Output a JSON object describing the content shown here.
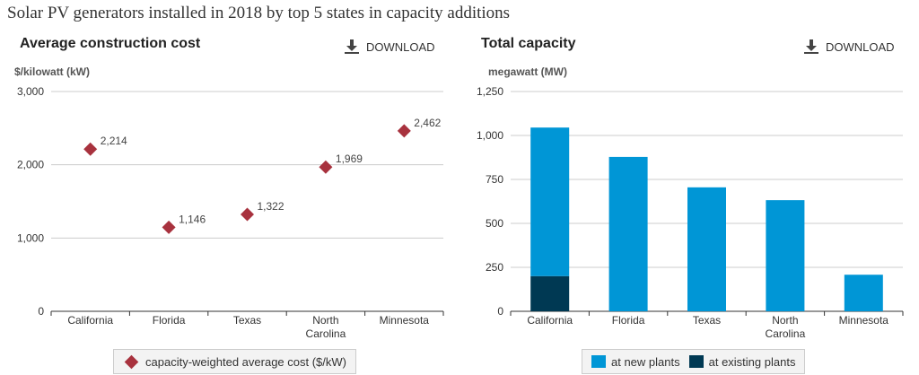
{
  "page_title": "Solar PV generators installed in 2018 by top 5 states in capacity additions",
  "colors": {
    "marker": "#a8323e",
    "new_plants": "#0096d6",
    "existing_plants": "#003953",
    "grid": "#cccccc",
    "axis": "#333333"
  },
  "icons": {
    "download": "download-icon"
  },
  "left_panel": {
    "title": "Average construction cost",
    "download_label": "DOWNLOAD",
    "unit": "$/kilowatt (kW)",
    "legend": "capacity-weighted average cost ($/kW)"
  },
  "right_panel": {
    "title": "Total capacity",
    "download_label": "DOWNLOAD",
    "unit": "megawatt (MW)",
    "legend_new": "at new plants",
    "legend_existing": "at existing plants"
  },
  "chart_data": [
    {
      "type": "scatter",
      "title": "Average construction cost",
      "ylabel": "$/kilowatt (kW)",
      "categories": [
        [
          "California"
        ],
        [
          "Florida"
        ],
        [
          "Texas"
        ],
        [
          "North",
          "Carolina"
        ],
        [
          "Minnesota"
        ]
      ],
      "series": [
        {
          "name": "capacity-weighted average cost ($/kW)",
          "values": [
            2214,
            1146,
            1322,
            1969,
            2462
          ]
        }
      ],
      "data_labels": [
        "2,214",
        "1,146",
        "1,322",
        "1,969",
        "2,462"
      ],
      "ylim": [
        0,
        3000
      ],
      "yticks": [
        0,
        1000,
        2000,
        3000
      ],
      "ytick_labels": [
        "0",
        "1,000",
        "2,000",
        "3,000"
      ],
      "grid": true,
      "legend_position": "bottom"
    },
    {
      "type": "bar",
      "stacked": true,
      "title": "Total capacity",
      "ylabel": "megawatt (MW)",
      "categories": [
        [
          "California"
        ],
        [
          "Florida"
        ],
        [
          "Texas"
        ],
        [
          "North",
          "Carolina"
        ],
        [
          "Minnesota"
        ]
      ],
      "series": [
        {
          "name": "at existing plants",
          "values": [
            200,
            0,
            0,
            0,
            0
          ]
        },
        {
          "name": "at new plants",
          "values": [
            845,
            878,
            705,
            632,
            208
          ]
        }
      ],
      "ylim": [
        0,
        1250
      ],
      "yticks": [
        0,
        250,
        500,
        750,
        1000,
        1250
      ],
      "ytick_labels": [
        "0",
        "250",
        "500",
        "750",
        "1,000",
        "1,250"
      ],
      "grid": true,
      "legend_position": "bottom"
    }
  ]
}
